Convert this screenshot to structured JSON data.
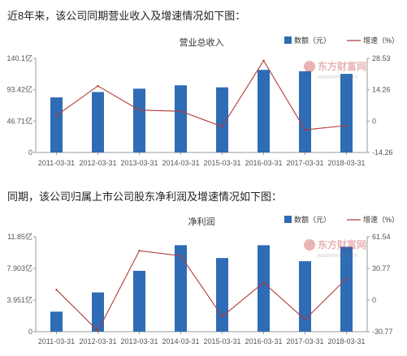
{
  "intro_revenue": "近8年来，该公司同期营业收入及增速情况如下图：",
  "intro_profit": "同期，该公司归属上市公司股东净利润及增速情况如下图：",
  "watermark": {
    "brand": "东方财富网",
    "domain": "eastmoney.com"
  },
  "colors": {
    "bar": "#2f6cb6",
    "line": "#b03a3a",
    "axis": "#999999",
    "text": "#555555"
  },
  "chart_data": [
    {
      "type": "bar",
      "title": "营业总收入",
      "categories": [
        "2011-03-31",
        "2012-03-31",
        "2013-03-31",
        "2014-03-31",
        "2015-03-31",
        "2016-03-31",
        "2017-03-31",
        "2018-03-31"
      ],
      "series": [
        {
          "name": "数额（元）",
          "type": "bar",
          "axis": "left",
          "values": [
            82,
            90,
            95,
            100,
            97,
            123,
            121,
            117
          ]
        },
        {
          "name": "增速（%）",
          "type": "line",
          "axis": "right",
          "values": [
            2.5,
            16.0,
            5.0,
            4.5,
            -2.5,
            27.5,
            -4.0,
            -2.0
          ]
        }
      ],
      "left_axis": {
        "ticks": [
          "0",
          "46.71亿",
          "93.42亿",
          "140.1亿"
        ],
        "unit": "亿",
        "ylim": [
          0,
          140.1
        ]
      },
      "right_axis": {
        "ticks": [
          "-14.26",
          "0",
          "14.26",
          "28.53"
        ],
        "ylim": [
          -14.26,
          28.53
        ]
      },
      "legend_position": "top-right"
    },
    {
      "type": "bar",
      "title": "净利润",
      "categories": [
        "2011-03-31",
        "2012-03-31",
        "2013-03-31",
        "2014-03-31",
        "2015-03-31",
        "2016-03-31",
        "2017-03-31",
        "2018-03-31"
      ],
      "series": [
        {
          "name": "数额（元）",
          "type": "bar",
          "axis": "left",
          "values": [
            2.5,
            4.9,
            7.6,
            10.8,
            9.2,
            10.8,
            8.8,
            10.6
          ]
        },
        {
          "name": "增速（%）",
          "type": "line",
          "axis": "right",
          "values": [
            10,
            -30,
            48,
            43,
            -16,
            17,
            -19,
            21
          ]
        }
      ],
      "left_axis": {
        "ticks": [
          "0",
          "3.951亿",
          "7.903亿",
          "11.85亿"
        ],
        "unit": "亿",
        "ylim": [
          0,
          11.85
        ]
      },
      "right_axis": {
        "ticks": [
          "-30.77",
          "0",
          "30.77",
          "61.54"
        ],
        "ylim": [
          -30.77,
          61.54
        ]
      },
      "legend_position": "top-right"
    }
  ]
}
